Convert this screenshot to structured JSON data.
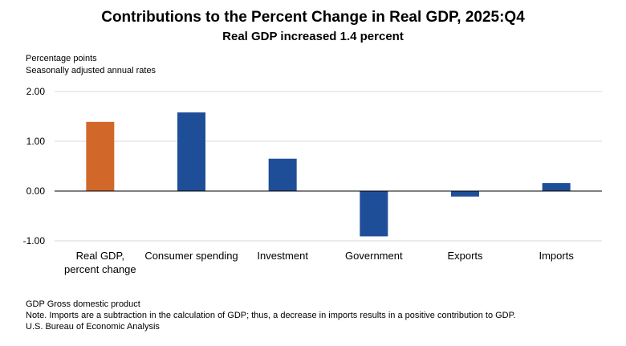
{
  "chart_data": {
    "type": "bar",
    "title": "Contributions to the Percent Change in Real GDP, 2025:Q4",
    "subtitle": "Real GDP increased 1.4 percent",
    "ylabel": "Percentage points",
    "ylabel_note": "Seasonally adjusted annual rates",
    "ylim": [
      -1.0,
      2.0
    ],
    "yticks": [
      2.0,
      1.0,
      0.0,
      -1.0
    ],
    "ytick_labels": [
      "2.00",
      "1.00",
      "0.00",
      "-1.00"
    ],
    "grid": true,
    "categories": [
      [
        "Real GDP,",
        "percent change"
      ],
      [
        "Consumer spending"
      ],
      [
        "Investment"
      ],
      [
        "Government"
      ],
      [
        "Exports"
      ],
      [
        "Imports"
      ]
    ],
    "values": [
      1.39,
      1.58,
      0.65,
      -0.91,
      -0.11,
      0.16
    ],
    "bar_colors": [
      "#d2672a",
      "#1f4e99",
      "#1f4e99",
      "#1f4e99",
      "#1f4e99",
      "#1f4e99"
    ]
  },
  "footnotes": [
    "GDP Gross domestic product",
    "Note. Imports are a subtraction in the calculation of GDP; thus, a decrease in imports results in a positive contribution to GDP.",
    "U.S. Bureau of Economic Analysis"
  ]
}
